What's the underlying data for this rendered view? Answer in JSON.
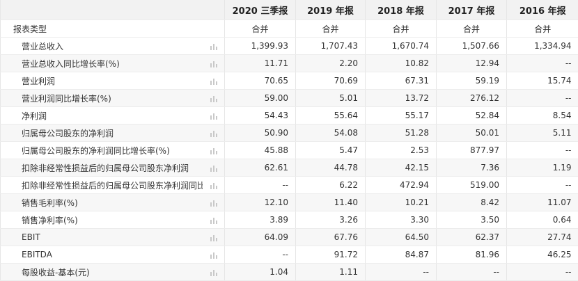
{
  "table": {
    "header": [
      "2020 三季报",
      "2019 年报",
      "2018 年报",
      "2017 年报",
      "2016 年报"
    ],
    "rows": [
      {
        "label": "报表类型",
        "cells": [
          "合并",
          "合并",
          "合并",
          "合并",
          "合并"
        ]
      },
      {
        "label": "营业总收入",
        "cells": [
          "1,399.93",
          "1,707.43",
          "1,670.74",
          "1,507.66",
          "1,334.94"
        ]
      },
      {
        "label": "营业总收入同比增长率(%)",
        "cells": [
          "11.71",
          "2.20",
          "10.82",
          "12.94",
          "--"
        ]
      },
      {
        "label": "营业利润",
        "cells": [
          "70.65",
          "70.69",
          "67.31",
          "59.19",
          "15.74"
        ]
      },
      {
        "label": "营业利润同比增长率(%)",
        "cells": [
          "59.00",
          "5.01",
          "13.72",
          "276.12",
          "--"
        ]
      },
      {
        "label": "净利润",
        "cells": [
          "54.43",
          "55.64",
          "55.17",
          "52.84",
          "8.54"
        ]
      },
      {
        "label": "归属母公司股东的净利润",
        "cells": [
          "50.90",
          "54.08",
          "51.28",
          "50.01",
          "5.11"
        ]
      },
      {
        "label": "归属母公司股东的净利润同比增长率(%)",
        "cells": [
          "45.88",
          "5.47",
          "2.53",
          "877.97",
          "--"
        ]
      },
      {
        "label": "扣除非经常性损益后的归属母公司股东净利润",
        "cells": [
          "62.61",
          "44.78",
          "42.15",
          "7.36",
          "1.19"
        ]
      },
      {
        "label": "扣除非经常性损益后的归属母公司股东净利润同比增长率(%)",
        "cells": [
          "--",
          "6.22",
          "472.94",
          "519.00",
          "--"
        ]
      },
      {
        "label": "销售毛利率(%)",
        "cells": [
          "12.10",
          "11.40",
          "10.21",
          "8.42",
          "11.07"
        ]
      },
      {
        "label": "销售净利率(%)",
        "cells": [
          "3.89",
          "3.26",
          "3.30",
          "3.50",
          "0.64"
        ]
      },
      {
        "label": "EBIT",
        "cells": [
          "64.09",
          "67.76",
          "64.50",
          "62.37",
          "27.74"
        ]
      },
      {
        "label": "EBITDA",
        "cells": [
          "--",
          "91.72",
          "84.87",
          "81.96",
          "46.25"
        ]
      },
      {
        "label": "每股收益-基本(元)",
        "cells": [
          "1.04",
          "1.11",
          "--",
          "--",
          "--"
        ]
      }
    ]
  }
}
